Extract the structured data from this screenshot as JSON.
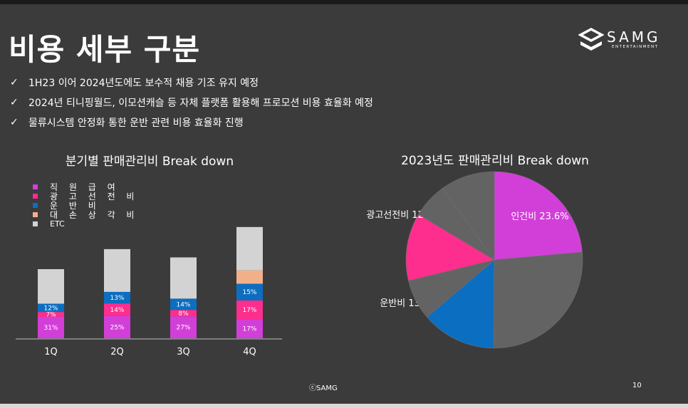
{
  "title": "비용 세부 구분",
  "logo": {
    "word": "SAMG",
    "sub": "ENTERTAINMENT"
  },
  "bullets": [
    "1H23 이어 2024년도에도 보수적 채용 기조 유지 예정",
    "2024년 티니핑월드, 이모션캐슬 등 자체 플랫폼 활용해 프로모션 비용 효율화 예정",
    "물류시스템 안정화 통한 운반 관련 비용 효율화 진행"
  ],
  "bullet_mark": "✓",
  "colors": {
    "background": "#3b3b3b",
    "salary": "#d23fd8",
    "advertising": "#fd2e8d",
    "freight": "#0c6ec0",
    "depreciation": "#f2b088",
    "etc": "#d3d3d3",
    "pie_other": "#636363"
  },
  "legend": [
    "직 원 급 여",
    "광 고 선 전 비",
    "운  반  비",
    "대 손 상 각 비",
    "ETC"
  ],
  "chart_data": [
    {
      "type": "bar",
      "title": "분기별 판매관리비 Break down",
      "categories": [
        "1Q",
        "2Q",
        "3Q",
        "4Q"
      ],
      "series": [
        {
          "name": "직 원 급 여",
          "values": [
            31,
            25,
            27,
            17
          ],
          "labels": [
            "31%",
            "25%",
            "27%",
            "17%"
          ]
        },
        {
          "name": "광 고 선 전 비",
          "values": [
            7,
            14,
            8,
            17
          ],
          "labels": [
            "7%",
            "14%",
            "8%",
            "17%"
          ]
        },
        {
          "name": "운  반  비",
          "values": [
            12,
            13,
            14,
            15
          ],
          "labels": [
            "12%",
            "13%",
            "14%",
            "15%"
          ]
        },
        {
          "name": "대 손 상 각 비",
          "values": [
            0,
            0,
            0,
            12
          ],
          "labels": [
            "",
            "",
            "",
            ""
          ]
        },
        {
          "name": "ETC",
          "values": [
            50,
            48,
            51,
            39
          ],
          "labels": [
            "",
            "",
            "",
            ""
          ]
        }
      ],
      "stack_totals": [
        100,
        129,
        117,
        161
      ]
    },
    {
      "type": "pie",
      "title": "2023년도 판매관리비 Break down",
      "slices": [
        {
          "label": "인건비 23.6%",
          "value": 23.6,
          "color": "#d23fd8"
        },
        {
          "label": "",
          "value": 26.5,
          "color": "#636363"
        },
        {
          "label": "운반비 13.7%",
          "value": 13.7,
          "color": "#0c6ec0"
        },
        {
          "label": "",
          "value": 7.4,
          "color": "#636363"
        },
        {
          "label": "광고선전비 12.4%",
          "value": 12.4,
          "color": "#fd2e8d"
        },
        {
          "label": "",
          "value": 6.4,
          "color": "#636363"
        },
        {
          "label": "",
          "value": 10.0,
          "color": "#636363"
        }
      ]
    }
  ],
  "footer": {
    "copyright": "ⓒSAMG",
    "page": "10"
  }
}
